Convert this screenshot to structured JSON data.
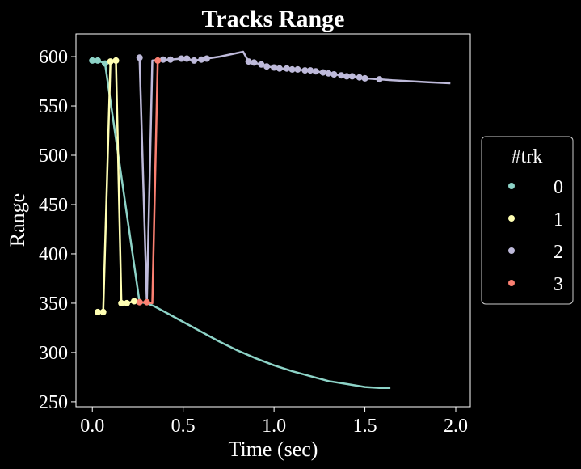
{
  "chart_data": {
    "type": "line",
    "title": "Tracks Range",
    "xlabel": "Time (sec)",
    "ylabel": "Range",
    "xlim": [
      -0.09,
      2.08
    ],
    "ylim": [
      245,
      623
    ],
    "xticks": [
      0.0,
      0.5,
      1.0,
      1.5,
      2.0
    ],
    "xtick_labels": [
      "0.0",
      "0.5",
      "1.0",
      "1.5",
      "2.0"
    ],
    "yticks": [
      250,
      300,
      350,
      400,
      450,
      500,
      550,
      600
    ],
    "ytick_labels": [
      "250",
      "300",
      "350",
      "400",
      "450",
      "500",
      "550",
      "600"
    ],
    "grid": false,
    "legend": {
      "title": "#trk",
      "placement": "center-right-outside"
    },
    "series": [
      {
        "name": "0",
        "color": "#8dd3c7",
        "x": [
          0.0,
          0.03,
          0.07,
          0.26,
          0.3,
          0.34,
          0.4,
          0.5,
          0.6,
          0.7,
          0.8,
          0.9,
          1.0,
          1.1,
          1.2,
          1.3,
          1.4,
          1.5,
          1.58,
          1.64
        ],
        "y": [
          596,
          596,
          593,
          351,
          350,
          347,
          341,
          331,
          321,
          311,
          302,
          294,
          287,
          281,
          276,
          271,
          268,
          265,
          264,
          264
        ],
        "markers_x": [
          0.0,
          0.03,
          0.07
        ],
        "markers_y": [
          596,
          596,
          593
        ]
      },
      {
        "name": "1",
        "color": "#ffffb3",
        "x": [
          0.03,
          0.06,
          0.1,
          0.13,
          0.16,
          0.19,
          0.23
        ],
        "y": [
          341,
          341,
          595,
          596,
          350,
          350,
          352
        ],
        "markers_x": [
          0.03,
          0.06,
          0.1,
          0.13,
          0.16,
          0.19,
          0.23
        ],
        "markers_y": [
          341,
          341,
          595,
          596,
          350,
          350,
          352
        ]
      },
      {
        "name": "2",
        "color": "#bebada",
        "x": [
          0.26,
          0.3,
          0.33,
          0.39,
          0.43,
          0.49,
          0.52,
          0.56,
          0.6,
          0.63,
          0.7,
          0.78,
          0.83,
          0.86,
          0.89,
          0.93,
          0.96,
          1.0,
          1.03,
          1.07,
          1.1,
          1.13,
          1.17,
          1.2,
          1.23,
          1.27,
          1.3,
          1.33,
          1.37,
          1.4,
          1.43,
          1.47,
          1.5,
          1.58,
          1.65,
          1.75,
          1.85,
          1.97
        ],
        "y": [
          599,
          351,
          596,
          597,
          597,
          598,
          598,
          596,
          597,
          598,
          600,
          603,
          605,
          595,
          594,
          592,
          590,
          589,
          588,
          588,
          587,
          587,
          586,
          586,
          585,
          584,
          583,
          582,
          581,
          580,
          580,
          579,
          578,
          577,
          576,
          575,
          574,
          573
        ],
        "markers_x": [
          0.26,
          0.39,
          0.43,
          0.49,
          0.52,
          0.56,
          0.6,
          0.63,
          0.86,
          0.89,
          0.93,
          0.96,
          1.0,
          1.03,
          1.07,
          1.1,
          1.13,
          1.17,
          1.2,
          1.23,
          1.27,
          1.3,
          1.33,
          1.37,
          1.4,
          1.43,
          1.47,
          1.5,
          1.58
        ],
        "markers_y": [
          599,
          597,
          597,
          598,
          598,
          596,
          597,
          598,
          595,
          594,
          592,
          590,
          589,
          588,
          588,
          587,
          587,
          586,
          586,
          585,
          584,
          583,
          582,
          581,
          580,
          580,
          579,
          578,
          577
        ]
      },
      {
        "name": "3",
        "color": "#fb8072",
        "x": [
          0.26,
          0.3,
          0.33,
          0.36
        ],
        "y": [
          351,
          351,
          350,
          596
        ],
        "markers_x": [
          0.26,
          0.3,
          0.36
        ],
        "markers_y": [
          351,
          351,
          596
        ]
      }
    ]
  }
}
